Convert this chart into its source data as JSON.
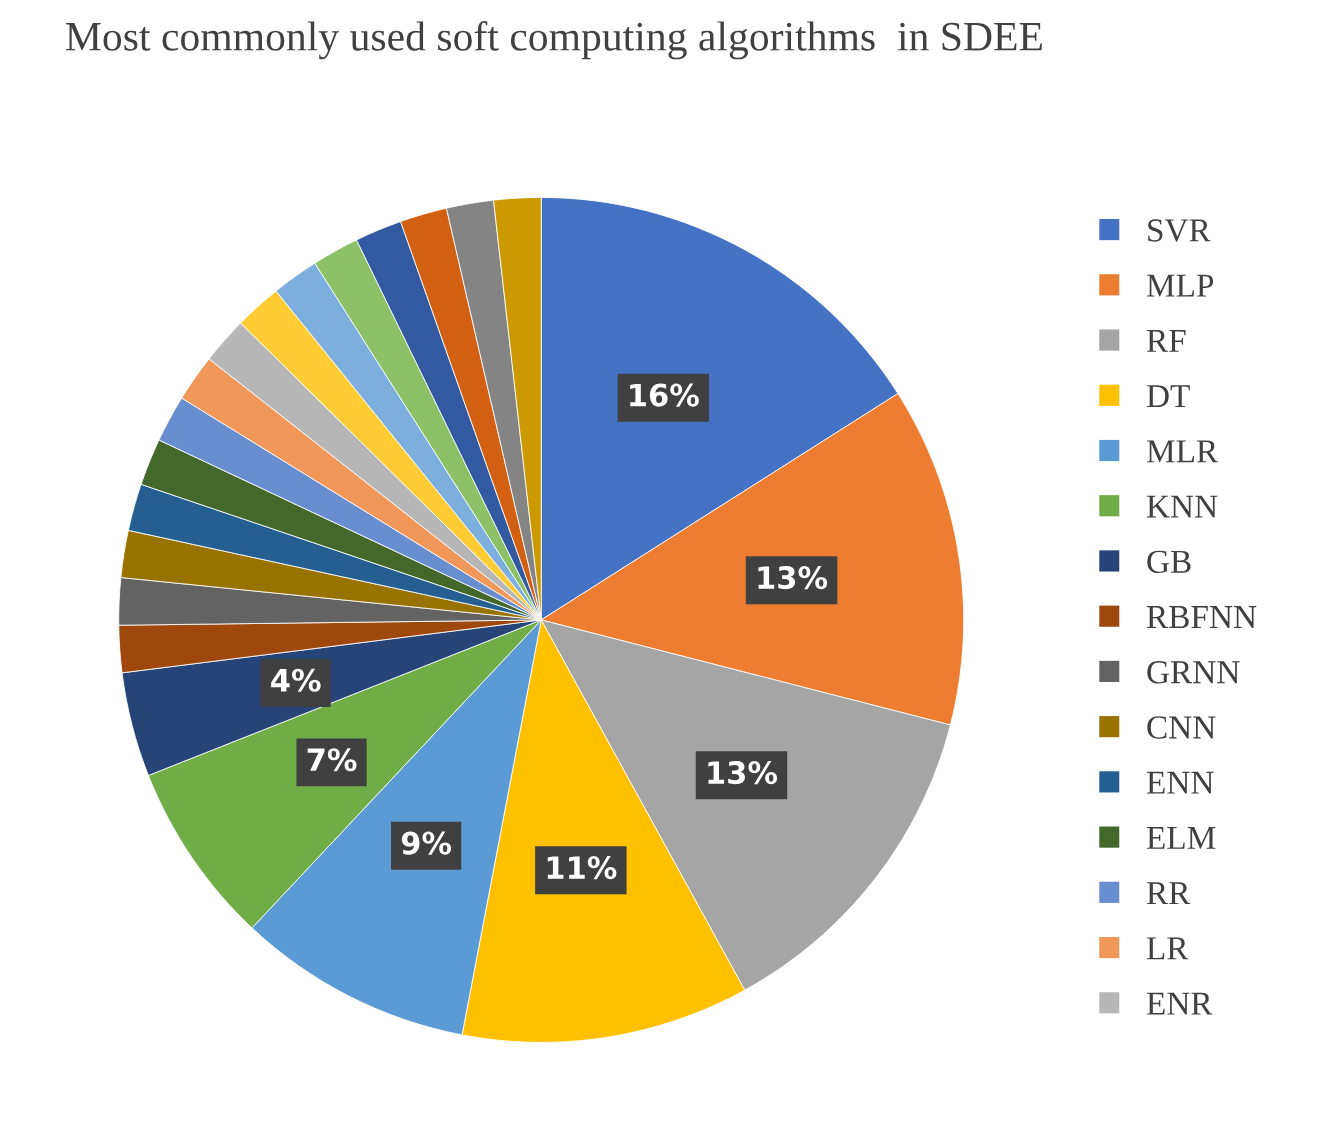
{
  "chart_data": {
    "type": "pie",
    "title": "Most commonly used soft computing algorithms  in SDEE",
    "categories": [
      "SVR",
      "MLP",
      "RF",
      "DT",
      "MLR",
      "KNN",
      "GB",
      "RBFNN",
      "GRNN",
      "CNN",
      "ENN",
      "ELM",
      "RR",
      "LR",
      "ENR",
      null,
      null,
      null,
      null,
      null,
      null,
      null
    ],
    "values": [
      16,
      13,
      13,
      11,
      9,
      7,
      4,
      1.8,
      1.8,
      1.8,
      1.8,
      1.8,
      1.8,
      1.8,
      1.8,
      1.8,
      1.8,
      1.8,
      1.8,
      1.8,
      1.8,
      1.8
    ],
    "value_labels": [
      "16%",
      "13%",
      "13%",
      "11%",
      "9%",
      "7%",
      "4%",
      null,
      null,
      null,
      null,
      null,
      null,
      null,
      null,
      null,
      null,
      null,
      null,
      null,
      null,
      null
    ],
    "colors": [
      "#4472c4",
      "#ed7d31",
      "#a5a5a5",
      "#ffc000",
      "#5b9bd5",
      "#70ad47",
      "#264478",
      "#9e480e",
      "#636363",
      "#997300",
      "#255e91",
      "#43682b",
      "#698ed0",
      "#f1975a",
      "#b7b7b7",
      "#ffcd33",
      "#7cafdd",
      "#8cc168",
      "#335aa1",
      "#d26012",
      "#848484",
      "#cc9a00"
    ],
    "legend": "right"
  }
}
